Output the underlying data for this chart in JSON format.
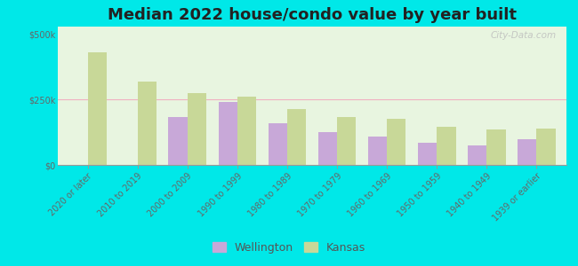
{
  "title": "Median 2022 house/condo value by year built",
  "categories": [
    "2020 or later",
    "2010 to 2019",
    "2000 to 2009",
    "1990 to 1999",
    "1980 to 1989",
    "1970 to 1979",
    "1960 to 1969",
    "1950 to 1959",
    "1940 to 1949",
    "1939 or earlier"
  ],
  "wellington_values": [
    0,
    0,
    185000,
    242000,
    160000,
    125000,
    110000,
    85000,
    75000,
    100000
  ],
  "kansas_values": [
    430000,
    320000,
    275000,
    260000,
    215000,
    185000,
    175000,
    145000,
    135000,
    140000
  ],
  "wellington_color": "#c8a8d8",
  "kansas_color": "#c8d898",
  "plot_bg_color": "#e8f5e0",
  "outer_background": "#00e8e8",
  "ylabel_ticks": [
    "$0",
    "$250k",
    "$500k"
  ],
  "ytick_values": [
    0,
    250000,
    500000
  ],
  "ylim": [
    0,
    530000
  ],
  "bar_width": 0.38,
  "title_fontsize": 13,
  "tick_fontsize": 7,
  "legend_fontsize": 9,
  "watermark": "City-Data.com"
}
